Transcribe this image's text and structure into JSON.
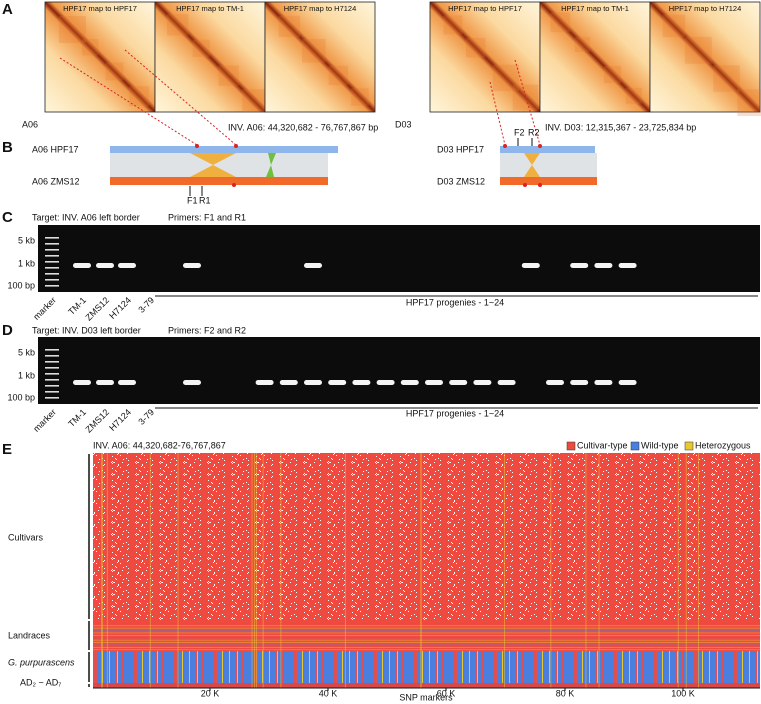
{
  "panels": {
    "A": {
      "label": "A",
      "left_chrom": "A06",
      "right_chrom": "D03",
      "maps": [
        "HPF17 map to HPF17",
        "HPF17 map to TM-1",
        "HPF17 map to H7124"
      ],
      "inv_left": "INV. A06: 44,320,682 - 76,767,867 bp",
      "inv_right": "INV. D03: 12,315,367 - 23,725,834 bp"
    },
    "B": {
      "label": "B",
      "left_top": "A06  HPF17",
      "left_bottom": "A06  ZMS12",
      "right_top": "D03  HPF17",
      "right_bottom": "D03  ZMS12",
      "primers_left": [
        "F1",
        "R1"
      ],
      "primers_right": [
        "F2",
        "R2"
      ]
    },
    "C": {
      "label": "C",
      "target": "Target: INV. A06 left border",
      "primers": "Primers: F1 and R1",
      "sizes": [
        "5 kb",
        "1 kb",
        "100 bp"
      ],
      "lanes": [
        "marker",
        "TM-1",
        "ZMS12",
        "H7124",
        "3-79"
      ],
      "progenies": "HPF17 progenies - 1~24"
    },
    "D": {
      "label": "D",
      "target": "Target: INV. D03 left border",
      "primers": "Primers: F2 and R2",
      "sizes": [
        "5 kb",
        "1 kb",
        "100 bp"
      ],
      "lanes": [
        "marker",
        "TM-1",
        "ZMS12",
        "H7124",
        "3-79"
      ],
      "progenies": "HPF17 progenies - 1~24"
    },
    "E": {
      "label": "E",
      "title": "INV. A06: 44,320,682-76,767,867",
      "legend": [
        "Cultivar-type",
        "Wild-type",
        "Heterozygous"
      ],
      "groups": [
        "Cultivars",
        "Landraces",
        "G. purpurascens",
        "AD₂ ~ AD₇"
      ],
      "xticks": [
        "20 K",
        "40 K",
        "60 K",
        "80 K",
        "100 K"
      ],
      "xlabel": "SNP markers"
    }
  }
}
